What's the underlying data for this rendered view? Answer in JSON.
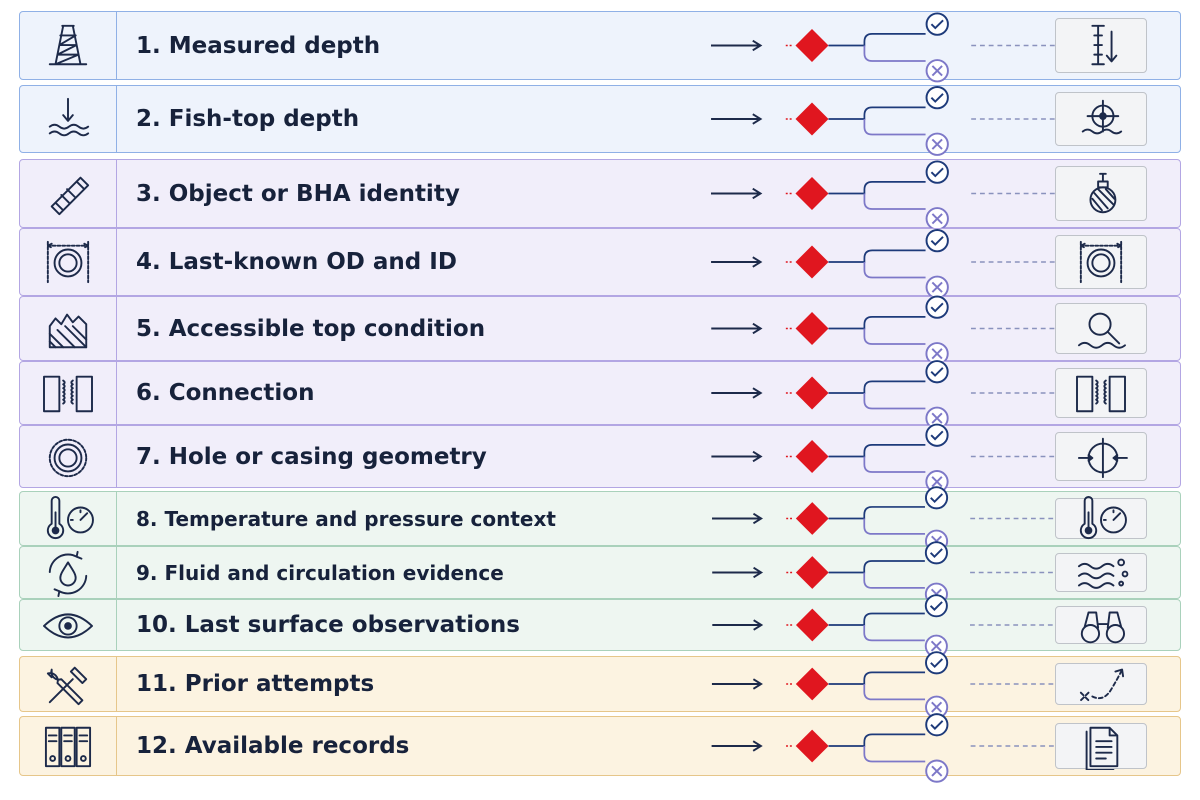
{
  "rows": [
    {
      "label": "1. Measured depth",
      "group": "blue",
      "icon": "derrick-icon",
      "result_icon": "depth-gauge-icon"
    },
    {
      "label": "2. Fish-top depth",
      "group": "blue",
      "icon": "depth-arrow-water-icon",
      "result_icon": "target-crosshair-icon"
    },
    {
      "label": "3. Object or BHA identity",
      "group": "purple",
      "icon": "drill-tool-icon",
      "result_icon": "bha-tool-icon"
    },
    {
      "label": "4. Last-known OD and ID",
      "group": "purple",
      "icon": "pipe-dimension-icon",
      "result_icon": "pipe-dimension-icon"
    },
    {
      "label": "5. Accessible top condition",
      "group": "purple",
      "icon": "broken-top-icon",
      "result_icon": "magnifier-icon"
    },
    {
      "label": "6. Connection",
      "group": "purple",
      "icon": "thread-connection-icon",
      "result_icon": "thread-connection-icon"
    },
    {
      "label": "7. Hole or casing geometry",
      "group": "purple",
      "icon": "casing-rings-icon",
      "result_icon": "casing-crosshair-icon"
    },
    {
      "label": "8. Temperature and pressure context",
      "group": "green",
      "icon": "thermometer-gauge-icon",
      "result_icon": "thermometer-gauge-icon"
    },
    {
      "label": "9. Fluid and circulation evidence",
      "group": "green",
      "icon": "fluid-circulation-icon",
      "result_icon": "fluid-waves-icon"
    },
    {
      "label": "10.  Last surface observations",
      "group": "green",
      "icon": "eye-icon",
      "result_icon": "binoculars-icon"
    },
    {
      "label": "11.  Prior attempts",
      "group": "orange",
      "icon": "wrench-screwdriver-icon",
      "result_icon": "path-attempt-icon"
    },
    {
      "label": "12.  Available records",
      "group": "orange",
      "icon": "binders-icon",
      "result_icon": "document-icon"
    }
  ],
  "colors": {
    "arrow": "#1d2a4a",
    "diamond": "#e0161f",
    "yes_branch": "#1d3a7a",
    "no_branch": "#7d78c8",
    "dashes": "#8a92bd"
  }
}
